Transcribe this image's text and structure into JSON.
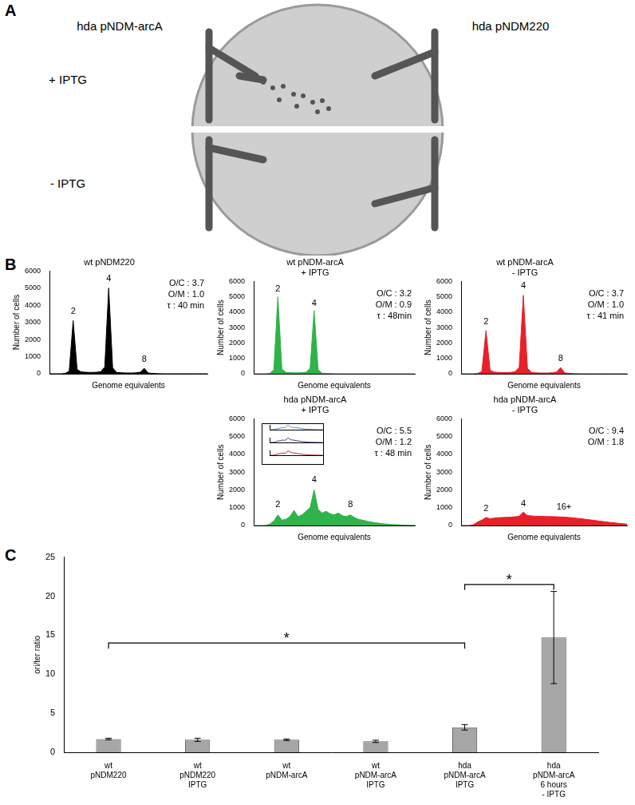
{
  "panel_labels": [
    "A",
    "B",
    "C"
  ],
  "plate": {
    "columns": [
      "hda pNDM-arcA",
      "hda pNDM220"
    ],
    "rows": [
      "+ IPTG",
      "- IPTG"
    ]
  },
  "chart_data": [
    {
      "type": "area",
      "title": [
        "wt pNDM220"
      ],
      "color": "#000000",
      "x_label": "Genome equivalents",
      "y_label": "Number of cells",
      "x": [
        0,
        2.5,
        5,
        7.5,
        10,
        12.5,
        15,
        17.5,
        20,
        22.5,
        25,
        27.5,
        30,
        32.5,
        35,
        37.5,
        40,
        42.5,
        45,
        47.5,
        50,
        52.5,
        55,
        57.5,
        60,
        62.5,
        65,
        67.5,
        70,
        72.5,
        75,
        77.5,
        80,
        82.5,
        85,
        87.5,
        90,
        92.5,
        95,
        97.5,
        100
      ],
      "values": [
        0,
        0,
        0,
        0,
        20,
        150,
        3100,
        250,
        110,
        90,
        80,
        80,
        90,
        120,
        400,
        5000,
        350,
        80,
        60,
        50,
        45,
        45,
        60,
        90,
        320,
        50,
        20,
        10,
        5,
        0,
        0,
        0,
        0,
        0,
        0,
        0,
        0,
        0,
        0,
        0,
        0
      ],
      "xlim": [
        0,
        100
      ],
      "xticks": [],
      "ylim": [
        0,
        6000
      ],
      "yticks": [
        0,
        1000,
        2000,
        3000,
        4000,
        5000,
        6000
      ],
      "tick_labels": "y",
      "grid": false,
      "annotations": [
        {
          "x": 15,
          "y": 3400,
          "text": "2"
        },
        {
          "x": 37.5,
          "y": 5300,
          "text": "4"
        },
        {
          "x": 60,
          "y": 600,
          "text": "8"
        }
      ],
      "stats": [
        "O/C : 3.7",
        "O/M : 1.0",
        "τ : 40 min"
      ]
    },
    {
      "type": "area",
      "title": [
        "wt pNDM-arcA",
        "+ IPTG"
      ],
      "color": "#2fb34a",
      "x_label": "Genome equivalents",
      "y_label": "Number of cells",
      "x": [
        0,
        2.5,
        5,
        7.5,
        10,
        12.5,
        15,
        17.5,
        20,
        22.5,
        25,
        27.5,
        30,
        32.5,
        35,
        37.5,
        40,
        42.5,
        45,
        47.5,
        50,
        52.5,
        55,
        57.5,
        60,
        62.5,
        65,
        67.5,
        70,
        72.5,
        75,
        77.5,
        80,
        82.5,
        85,
        87.5,
        90,
        92.5,
        95,
        97.5,
        100
      ],
      "values": [
        0,
        0,
        0,
        0,
        30,
        250,
        5000,
        300,
        90,
        70,
        60,
        60,
        70,
        100,
        350,
        4100,
        250,
        40,
        20,
        10,
        5,
        0,
        0,
        0,
        0,
        0,
        0,
        0,
        0,
        0,
        0,
        0,
        0,
        0,
        0,
        0,
        0,
        0,
        0,
        0,
        0
      ],
      "xlim": [
        0,
        100
      ],
      "xticks": [],
      "ylim": [
        0,
        6000
      ],
      "yticks": [
        0,
        1000,
        2000,
        3000,
        4000,
        5000,
        6000
      ],
      "tick_labels": "y",
      "grid": false,
      "annotations": [
        {
          "x": 15,
          "y": 5200,
          "text": "2"
        },
        {
          "x": 37.5,
          "y": 4300,
          "text": "4"
        }
      ],
      "stats": [
        "O/C : 3.2",
        "O/M : 0.9",
        "τ : 48min"
      ]
    },
    {
      "type": "area",
      "title": [
        "wt pNDM-arcA",
        "- IPTG"
      ],
      "color": "#e8202a",
      "x_label": "Genome equivalents",
      "y_label": "Number of cells",
      "x": [
        0,
        2.5,
        5,
        7.5,
        10,
        12.5,
        15,
        17.5,
        20,
        22.5,
        25,
        27.5,
        30,
        32.5,
        35,
        37.5,
        40,
        42.5,
        45,
        47.5,
        50,
        52.5,
        55,
        57.5,
        60,
        62.5,
        65,
        67.5,
        70,
        72.5,
        75,
        77.5,
        80,
        82.5,
        85,
        87.5,
        90,
        92.5,
        95,
        97.5,
        100
      ],
      "values": [
        0,
        0,
        0,
        0,
        20,
        150,
        2800,
        220,
        110,
        90,
        80,
        80,
        90,
        130,
        420,
        5100,
        350,
        90,
        60,
        50,
        50,
        50,
        70,
        110,
        400,
        60,
        25,
        10,
        5,
        0,
        0,
        0,
        0,
        0,
        0,
        0,
        0,
        0,
        0,
        0,
        0
      ],
      "xlim": [
        0,
        100
      ],
      "xticks": [],
      "ylim": [
        0,
        6000
      ],
      "yticks": [
        0,
        1000,
        2000,
        3000,
        4000,
        5000,
        6000
      ],
      "tick_labels": "y",
      "grid": false,
      "annotations": [
        {
          "x": 15,
          "y": 3100,
          "text": "2"
        },
        {
          "x": 37.5,
          "y": 5400,
          "text": "4"
        },
        {
          "x": 60,
          "y": 700,
          "text": "8"
        }
      ],
      "stats": [
        "O/C : 3.7",
        "O/M : 1.0",
        "τ : 41 min"
      ]
    },
    {
      "type": "area",
      "title": [
        "hda pNDM-arcA",
        "+ IPTG"
      ],
      "color": "#2fb34a",
      "x_label": "Genome equivalents",
      "y_label": "Number of cells",
      "x": [
        0,
        2.5,
        5,
        7.5,
        10,
        12.5,
        15,
        17.5,
        20,
        22.5,
        25,
        27.5,
        30,
        32.5,
        35,
        37.5,
        40,
        42.5,
        45,
        47.5,
        50,
        52.5,
        55,
        57.5,
        60,
        62.5,
        65,
        67.5,
        70,
        72.5,
        75,
        77.5,
        80,
        82.5,
        85,
        87.5,
        90,
        92.5,
        95,
        97.5,
        100
      ],
      "values": [
        0,
        0,
        0,
        10,
        80,
        250,
        600,
        300,
        350,
        500,
        850,
        500,
        600,
        800,
        1000,
        2000,
        900,
        700,
        800,
        650,
        600,
        700,
        550,
        500,
        600,
        450,
        350,
        300,
        250,
        200,
        160,
        130,
        100,
        80,
        60,
        50,
        40,
        30,
        20,
        15,
        10
      ],
      "xlim": [
        0,
        100
      ],
      "xticks": [],
      "ylim": [
        0,
        6000
      ],
      "yticks": [
        0,
        1000,
        2000,
        3000,
        4000,
        5000,
        6000
      ],
      "tick_labels": "y",
      "grid": false,
      "annotations": [
        {
          "x": 15,
          "y": 900,
          "text": "2"
        },
        {
          "x": 37.5,
          "y": 2300,
          "text": "4"
        },
        {
          "x": 60,
          "y": 900,
          "text": "8"
        }
      ],
      "stats": [
        "O/C : 5.5",
        "O/M : 1.2",
        "τ : 48 min"
      ],
      "inset": [
        {
          "type": "line",
          "color": "#4f8fd6",
          "x": [
            0,
            5,
            10,
            15,
            20,
            25,
            30,
            35,
            40,
            45,
            50,
            55,
            60,
            65,
            70,
            75,
            80,
            85,
            90,
            95,
            100
          ],
          "values": [
            0,
            0,
            5,
            25,
            30,
            45,
            40,
            100,
            55,
            45,
            40,
            35,
            25,
            15,
            10,
            6,
            4,
            2,
            1,
            0,
            0
          ],
          "xlim": [
            0,
            100
          ],
          "xticks": [],
          "ylim": [
            0,
            100
          ],
          "yticks": [],
          "tick_labels": false,
          "grid": false
        },
        {
          "type": "line",
          "color": "#3b3f8f",
          "x": [
            0,
            5,
            10,
            15,
            20,
            25,
            30,
            35,
            40,
            45,
            50,
            55,
            60,
            65,
            70,
            75,
            80,
            85,
            90,
            95,
            100
          ],
          "values": [
            0,
            0,
            5,
            30,
            35,
            50,
            45,
            95,
            55,
            50,
            40,
            30,
            22,
            14,
            9,
            5,
            3,
            2,
            1,
            0,
            0
          ],
          "xlim": [
            0,
            100
          ],
          "xticks": [],
          "ylim": [
            0,
            100
          ],
          "yticks": [],
          "tick_labels": false,
          "grid": false
        },
        {
          "type": "line",
          "color": "#b0282c",
          "x": [
            0,
            5,
            10,
            15,
            20,
            25,
            30,
            35,
            40,
            45,
            50,
            55,
            60,
            65,
            70,
            75,
            80,
            85,
            90,
            95,
            100
          ],
          "values": [
            0,
            0,
            4,
            25,
            35,
            45,
            40,
            90,
            60,
            45,
            40,
            30,
            25,
            15,
            10,
            6,
            4,
            2,
            1,
            0,
            0
          ],
          "xlim": [
            0,
            100
          ],
          "xticks": [],
          "ylim": [
            0,
            100
          ],
          "yticks": [],
          "tick_labels": false,
          "grid": false
        }
      ]
    },
    {
      "type": "area",
      "title": [
        "hda pNDM-arcA",
        "- IPTG"
      ],
      "color": "#e8202a",
      "x_label": "Genome equivalents",
      "y_label": "Number of cells",
      "x": [
        0,
        2.5,
        5,
        7.5,
        10,
        12.5,
        15,
        17.5,
        20,
        22.5,
        25,
        27.5,
        30,
        32.5,
        35,
        37.5,
        40,
        42.5,
        45,
        47.5,
        50,
        52.5,
        55,
        57.5,
        60,
        62.5,
        65,
        67.5,
        70,
        72.5,
        75,
        77.5,
        80,
        82.5,
        85,
        87.5,
        90,
        92.5,
        95,
        97.5,
        100
      ],
      "values": [
        0,
        0,
        0,
        50,
        200,
        300,
        450,
        380,
        420,
        440,
        450,
        460,
        470,
        490,
        520,
        750,
        560,
        540,
        520,
        520,
        510,
        500,
        500,
        490,
        480,
        470,
        450,
        430,
        400,
        380,
        350,
        320,
        290,
        260,
        230,
        200,
        170,
        150,
        120,
        100,
        80
      ],
      "xlim": [
        0,
        100
      ],
      "xticks": [],
      "ylim": [
        0,
        6000
      ],
      "yticks": [
        0,
        1000,
        2000,
        3000,
        4000,
        5000,
        6000
      ],
      "tick_labels": "y",
      "grid": false,
      "annotations": [
        {
          "x": 15,
          "y": 700,
          "text": "2"
        },
        {
          "x": 37.5,
          "y": 950,
          "text": "4"
        },
        {
          "x": 62,
          "y": 800,
          "text": "16+"
        }
      ],
      "stats": [
        "O/C : 9.4",
        "O/M : 1.8"
      ]
    },
    {
      "type": "bar",
      "color": "#a6a6a6",
      "y_label": "ori/ter ratio",
      "categories": [
        [
          "wt",
          "pNDM220"
        ],
        [
          "wt",
          "pNDM220",
          "IPTG"
        ],
        [
          "wt",
          "pNDM-arcA"
        ],
        [
          "wt",
          "pNDM-arcA",
          "IPTG"
        ],
        [
          "hda",
          "pNDM-arcA",
          "IPTG"
        ],
        [
          "hda",
          "pNDM-arcA",
          "6 hours",
          "- IPTG"
        ]
      ],
      "values": [
        1.7,
        1.6,
        1.6,
        1.4,
        3.2,
        14.7
      ],
      "errors": [
        0.1,
        0.2,
        0.1,
        0.15,
        0.35,
        5.9
      ],
      "ylim": [
        0,
        25
      ],
      "yticks": [
        0,
        5,
        10,
        15,
        20,
        25
      ],
      "grid": false,
      "brackets": [
        {
          "from": 0,
          "to": 4,
          "y": 14,
          "text": "*"
        },
        {
          "from": 4,
          "to": 5,
          "y": 21.5,
          "text": "*"
        }
      ]
    }
  ]
}
